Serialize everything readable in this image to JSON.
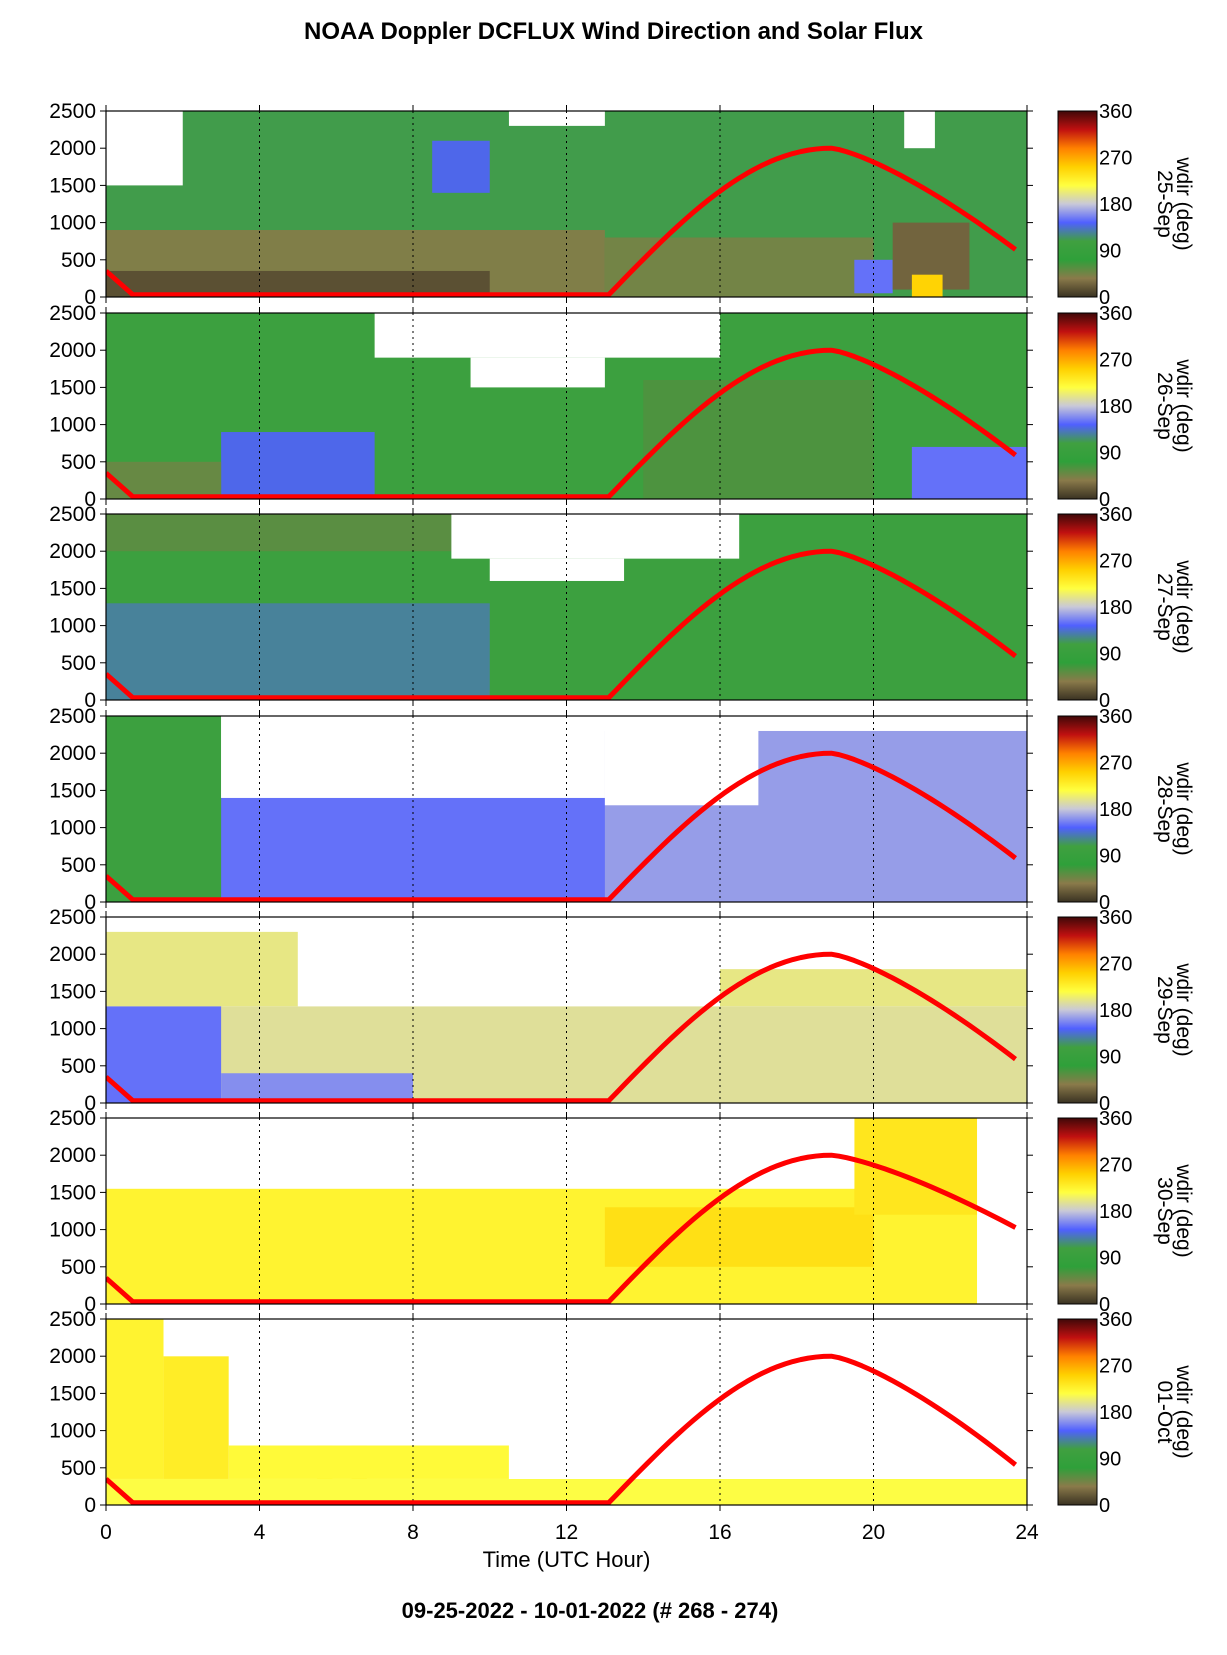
{
  "title": "NOAA Doppler DCFLUX Wind Direction and Solar Flux",
  "footer": "09-25-2022 - 10-01-2022   (# 268 - 274)",
  "chart_data": {
    "type": "heatmap",
    "xlabel": "Time (UTC Hour)",
    "xlim": [
      0,
      24
    ],
    "x_ticks": [
      "0",
      "4",
      "8",
      "12",
      "16",
      "20",
      "24"
    ],
    "ylim": [
      0,
      2500
    ],
    "y_ticks": [
      "0",
      "500",
      "1000",
      "1500",
      "2000",
      "2500"
    ],
    "colorbar": {
      "label": "wdir (deg)",
      "range": [
        0,
        360
      ],
      "ticks": [
        "0",
        "90",
        "180",
        "270",
        "360"
      ],
      "colors": [
        "#3a3222",
        "#8a7a4a",
        "#2fa03a",
        "#40a040",
        "#5060ff",
        "#c8c8d8",
        "#ffff40",
        "#ffd000",
        "#ff8000",
        "#c01010",
        "#400808"
      ]
    },
    "overlay": {
      "name": "solar flux",
      "color": "#ff0000",
      "sunrise_hour": 13.1,
      "peak_hour": 18.9,
      "zero_start_hour": 0.7
    },
    "panels": [
      {
        "date": "25-Sep",
        "flux_end_y": 600,
        "cells": [
          {
            "x": [
              0,
              24
            ],
            "y": [
              0,
              2500
            ],
            "wdir": 110
          },
          {
            "x": [
              0,
              13
            ],
            "y": [
              0,
              900
            ],
            "wdir": 40
          },
          {
            "x": [
              0,
              10
            ],
            "y": [
              0,
              350
            ],
            "wdir": 15
          },
          {
            "x": [
              8.5,
              10
            ],
            "y": [
              1400,
              2100
            ],
            "wdir": 140
          },
          {
            "x": [
              13,
              20
            ],
            "y": [
              0,
              800
            ],
            "wdir": 45
          },
          {
            "x": [
              19.5,
              20.5
            ],
            "y": [
              50,
              500
            ],
            "wdir": 150
          },
          {
            "x": [
              20.5,
              22.5
            ],
            "y": [
              100,
              1000
            ],
            "wdir": 25
          },
          {
            "x": [
              21,
              21.8
            ],
            "y": [
              0,
              300
            ],
            "wdir": 250
          },
          {
            "x": [
              0,
              2
            ],
            "y": [
              1500,
              2500
            ],
            "wdir": -1
          },
          {
            "x": [
              10.5,
              13
            ],
            "y": [
              2300,
              2500
            ],
            "wdir": -1
          },
          {
            "x": [
              20.8,
              21.6
            ],
            "y": [
              2000,
              2500
            ],
            "wdir": -1
          }
        ]
      },
      {
        "date": "26-Sep",
        "flux_end_y": 550,
        "cells": [
          {
            "x": [
              0,
              24
            ],
            "y": [
              0,
              2500
            ],
            "wdir": 100
          },
          {
            "x": [
              3,
              7
            ],
            "y": [
              0,
              900
            ],
            "wdir": 140
          },
          {
            "x": [
              14,
              20
            ],
            "y": [
              0,
              1600
            ],
            "wdir": 60
          },
          {
            "x": [
              21,
              24
            ],
            "y": [
              0,
              700
            ],
            "wdir": 150
          },
          {
            "x": [
              0,
              3
            ],
            "y": [
              0,
              500
            ],
            "wdir": 50
          },
          {
            "x": [
              7,
              16
            ],
            "y": [
              1900,
              2500
            ],
            "wdir": -1
          },
          {
            "x": [
              9.5,
              13
            ],
            "y": [
              1500,
              1900
            ],
            "wdir": -1
          }
        ]
      },
      {
        "date": "27-Sep",
        "flux_end_y": 550,
        "cells": [
          {
            "x": [
              0,
              24
            ],
            "y": [
              0,
              2500
            ],
            "wdir": 100
          },
          {
            "x": [
              0,
              10
            ],
            "y": [
              0,
              1300
            ],
            "wdir": 125
          },
          {
            "x": [
              0,
              9
            ],
            "y": [
              2000,
              2500
            ],
            "wdir": 55
          },
          {
            "x": [
              9,
              16.5
            ],
            "y": [
              1900,
              2500
            ],
            "wdir": -1
          },
          {
            "x": [
              10,
              13.5
            ],
            "y": [
              1600,
              1900
            ],
            "wdir": -1
          }
        ]
      },
      {
        "date": "28-Sep",
        "flux_end_y": 550,
        "cells": [
          {
            "x": [
              0,
              24
            ],
            "y": [
              0,
              1400
            ],
            "wdir": 150
          },
          {
            "x": [
              0,
              3
            ],
            "y": [
              0,
              2500
            ],
            "wdir": 100
          },
          {
            "x": [
              13,
              24
            ],
            "y": [
              0,
              2300
            ],
            "wdir": 165
          },
          {
            "x": [
              3,
              13
            ],
            "y": [
              1400,
              2500
            ],
            "wdir": -1
          },
          {
            "x": [
              13,
              17
            ],
            "y": [
              1300,
              2500
            ],
            "wdir": -1
          },
          {
            "x": [
              17,
              24
            ],
            "y": [
              2300,
              2500
            ],
            "wdir": -1
          }
        ]
      },
      {
        "date": "29-Sep",
        "flux_end_y": 550,
        "cells": [
          {
            "x": [
              0,
              24
            ],
            "y": [
              0,
              1300
            ],
            "wdir": 195
          },
          {
            "x": [
              0,
              3
            ],
            "y": [
              0,
              1300
            ],
            "wdir": 150
          },
          {
            "x": [
              3,
              8
            ],
            "y": [
              0,
              400
            ],
            "wdir": 160
          },
          {
            "x": [
              0,
              5
            ],
            "y": [
              1300,
              2300
            ],
            "wdir": 200
          },
          {
            "x": [
              16,
              24
            ],
            "y": [
              1300,
              1800
            ],
            "wdir": 200
          },
          {
            "x": [
              5,
              16
            ],
            "y": [
              1300,
              2500
            ],
            "wdir": -1
          },
          {
            "x": [
              16,
              24
            ],
            "y": [
              1800,
              2500
            ],
            "wdir": -1
          }
        ]
      },
      {
        "date": "30-Sep",
        "flux_end_y": 1000,
        "cells": [
          {
            "x": [
              0,
              22.7
            ],
            "y": [
              0,
              1550
            ],
            "wdir": 225
          },
          {
            "x": [
              13,
              20
            ],
            "y": [
              500,
              1300
            ],
            "wdir": 240
          },
          {
            "x": [
              19.5,
              22.7
            ],
            "y": [
              1200,
              2500
            ],
            "wdir": 235
          },
          {
            "x": [
              0,
              19.5
            ],
            "y": [
              1550,
              2500
            ],
            "wdir": -1
          },
          {
            "x": [
              22.7,
              24
            ],
            "y": [
              0,
              2500
            ],
            "wdir": -1
          }
        ]
      },
      {
        "date": "01-Oct",
        "flux_end_y": 500,
        "cells": [
          {
            "x": [
              0,
              24
            ],
            "y": [
              0,
              350
            ],
            "wdir": 215
          },
          {
            "x": [
              0,
              1.5
            ],
            "y": [
              350,
              2500
            ],
            "wdir": 225
          },
          {
            "x": [
              1.5,
              3.2
            ],
            "y": [
              350,
              2000
            ],
            "wdir": 230
          },
          {
            "x": [
              5.5,
              5.9
            ],
            "y": [
              350,
              1800
            ],
            "wdir": 245
          },
          {
            "x": [
              6.4,
              6.8
            ],
            "y": [
              350,
              2200
            ],
            "wdir": 260
          },
          {
            "x": [
              3.2,
              10.5
            ],
            "y": [
              350,
              800
            ],
            "wdir": 220
          },
          {
            "x": [
              1.5,
              3.2
            ],
            "y": [
              2000,
              2500
            ],
            "wdir": -1
          },
          {
            "x": [
              3.2,
              24
            ],
            "y": [
              800,
              2500
            ],
            "wdir": -1
          },
          {
            "x": [
              10.5,
              24
            ],
            "y": [
              350,
              800
            ],
            "wdir": -1
          }
        ]
      }
    ]
  }
}
